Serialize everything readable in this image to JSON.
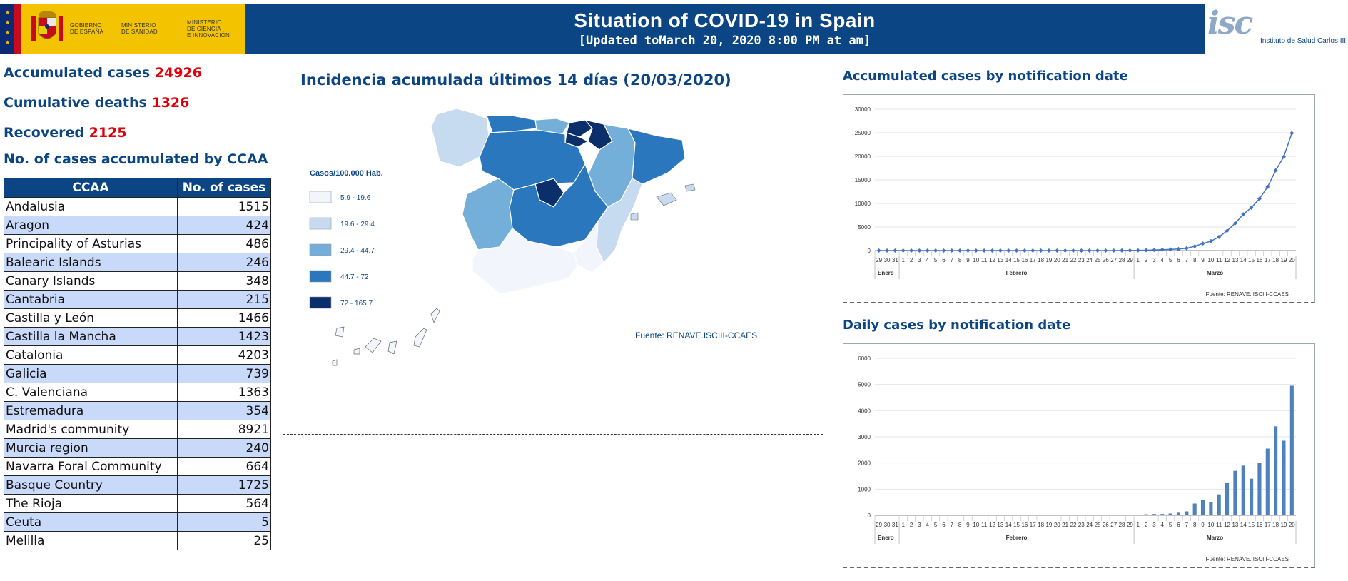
{
  "header": {
    "gov_text_1": "GOBIERNO\nDE ESPAÑA",
    "gov_text_2": "MINISTERIO\nDE SANIDAD",
    "gov_text_3": "MINISTERIO\nDE CIENCIA\nE INNOVACIÓN",
    "title": "Situation of COVID-19 in Spain",
    "subtitle": "[Updated toMarch 20, 2020 8:00 PM at am]",
    "isc_mark": "isc",
    "isc_name": "Instituto de Salud Carlos III"
  },
  "summary": {
    "cases_label": "Accumulated cases",
    "cases_value": "24926",
    "deaths_label": "Cumulative deaths",
    "deaths_value": "1326",
    "recovered_label": "Recovered",
    "recovered_value": "2125",
    "ccaa_title": "No. of cases accumulated by CCAA"
  },
  "ccaa_table": {
    "headers": [
      "CCAA",
      "No. of cases"
    ],
    "rows": [
      [
        "Andalusia",
        "1515"
      ],
      [
        "Aragon",
        "424"
      ],
      [
        "Principality of Asturias",
        "486"
      ],
      [
        "Balearic Islands",
        "246"
      ],
      [
        "Canary Islands",
        "348"
      ],
      [
        "Cantabria",
        "215"
      ],
      [
        "Castilla y León",
        "1466"
      ],
      [
        "Castilla la Mancha",
        "1423"
      ],
      [
        "Catalonia",
        "4203"
      ],
      [
        "Galicia",
        "739"
      ],
      [
        "C. Valenciana",
        "1363"
      ],
      [
        "Estremadura",
        "354"
      ],
      [
        "Madrid's community",
        "8921"
      ],
      [
        "Murcia region",
        "240"
      ],
      [
        "Navarra Foral Community",
        "664"
      ],
      [
        "Basque Country",
        "1725"
      ],
      [
        "The Rioja",
        "564"
      ],
      [
        "Ceuta",
        "5"
      ],
      [
        "Melilla",
        "25"
      ]
    ]
  },
  "map": {
    "title": "Incidencia acumulada últimos 14 días (20/03/2020)",
    "legend_title": "Casos/100.000 Hab.",
    "legend": [
      {
        "label": "5.9 - 19.6",
        "color": "#f2f6fc"
      },
      {
        "label": "19.6 - 29.4",
        "color": "#c6dbef"
      },
      {
        "label": "29.4 - 44.7",
        "color": "#74afd9"
      },
      {
        "label": "44.7 - 72",
        "color": "#2b77bd"
      },
      {
        "label": "72 - 165.7",
        "color": "#0a2f6b"
      }
    ],
    "source": "Fuente: RENAVE.ISCIII-CCAES"
  },
  "chart_data": [
    {
      "type": "line",
      "title": "Accumulated cases by notification date",
      "x": [
        "29",
        "30",
        "31",
        "1",
        "2",
        "3",
        "4",
        "5",
        "6",
        "7",
        "8",
        "9",
        "10",
        "11",
        "12",
        "13",
        "14",
        "15",
        "16",
        "17",
        "18",
        "19",
        "20",
        "21",
        "22",
        "23",
        "24",
        "25",
        "26",
        "27",
        "28",
        "29",
        "1",
        "2",
        "3",
        "4",
        "5",
        "6",
        "7",
        "8",
        "9",
        "10",
        "11",
        "12",
        "13",
        "14",
        "15",
        "16",
        "17",
        "18",
        "19",
        "20"
      ],
      "month_labels": [
        "Enero",
        "Febrero",
        "Marzo"
      ],
      "values": [
        0,
        0,
        0,
        0,
        0,
        0,
        0,
        0,
        0,
        0,
        0,
        0,
        0,
        0,
        0,
        0,
        0,
        0,
        0,
        0,
        0,
        0,
        0,
        0,
        0,
        0,
        0,
        0,
        2,
        4,
        10,
        20,
        40,
        80,
        130,
        180,
        250,
        350,
        500,
        900,
        1500,
        2000,
        2900,
        4200,
        5800,
        7700,
        9100,
        11000,
        13500,
        17000,
        19900,
        24926
      ],
      "yticks": [
        0,
        5000,
        10000,
        15000,
        20000,
        25000,
        30000
      ],
      "ylim": [
        0,
        30000
      ],
      "color": "#4472c4",
      "source": "Fuente: RENAVE. ISCIII-CCAES"
    },
    {
      "type": "bar",
      "title": "Daily cases by notification date",
      "x": [
        "29",
        "30",
        "31",
        "1",
        "2",
        "3",
        "4",
        "5",
        "6",
        "7",
        "8",
        "9",
        "10",
        "11",
        "12",
        "13",
        "14",
        "15",
        "16",
        "17",
        "18",
        "19",
        "20",
        "21",
        "22",
        "23",
        "24",
        "25",
        "26",
        "27",
        "28",
        "29",
        "1",
        "2",
        "3",
        "4",
        "5",
        "6",
        "7",
        "8",
        "9",
        "10",
        "11",
        "12",
        "13",
        "14",
        "15",
        "16",
        "17",
        "18",
        "19",
        "20"
      ],
      "month_labels": [
        "Enero",
        "Febrero",
        "Marzo"
      ],
      "values": [
        0,
        0,
        0,
        0,
        0,
        0,
        0,
        0,
        0,
        0,
        0,
        0,
        0,
        0,
        0,
        0,
        0,
        0,
        0,
        0,
        0,
        0,
        0,
        0,
        0,
        0,
        0,
        0,
        2,
        2,
        6,
        10,
        20,
        40,
        50,
        50,
        70,
        100,
        150,
        450,
        600,
        500,
        800,
        1250,
        1700,
        1900,
        1400,
        2000,
        2550,
        3400,
        2850,
        4950
      ],
      "yticks": [
        0,
        1000,
        2000,
        3000,
        4000,
        5000,
        6000
      ],
      "ylim": [
        0,
        6000
      ],
      "color": "#4f81bd",
      "source": "Fuente: RENAVE. ISCIII-CCAES"
    }
  ]
}
